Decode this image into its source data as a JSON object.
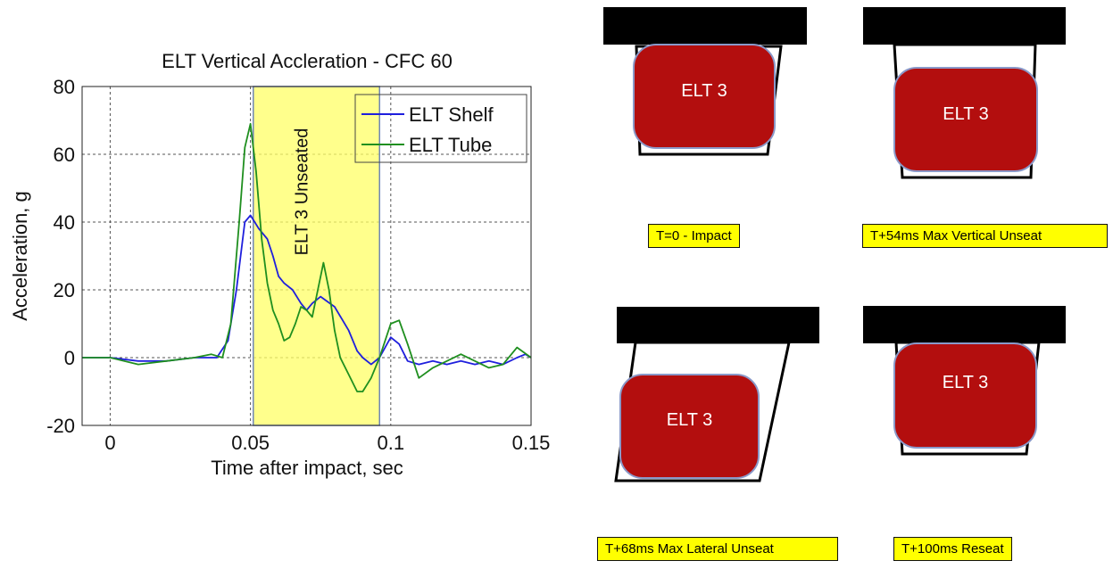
{
  "chart_data": {
    "type": "line",
    "title": "ELT Vertical Accleration - CFC 60",
    "xlabel": "Time after impact, sec",
    "ylabel": "Acceleration, g",
    "xlim": [
      -0.01,
      0.15
    ],
    "ylim": [
      -20,
      80
    ],
    "xticks": [
      0,
      0.05,
      0.1,
      0.15
    ],
    "xtick_labels": [
      "0",
      "0.05",
      "0.1",
      "0.15"
    ],
    "yticks": [
      -20,
      0,
      20,
      40,
      60,
      80
    ],
    "ytick_labels": [
      "-20",
      "0",
      "20",
      "40",
      "60",
      "80"
    ],
    "grid": true,
    "legend_position": "top-right",
    "shaded_region": {
      "x_start": 0.051,
      "x_end": 0.096,
      "label": "ELT 3 Unseated",
      "color": "#ffff66"
    },
    "series": [
      {
        "name": "ELT Shelf",
        "color": "#1f1fdd",
        "x": [
          -0.01,
          0,
          0.01,
          0.02,
          0.03,
          0.038,
          0.042,
          0.045,
          0.048,
          0.05,
          0.053,
          0.056,
          0.058,
          0.06,
          0.062,
          0.065,
          0.068,
          0.07,
          0.072,
          0.075,
          0.08,
          0.085,
          0.088,
          0.09,
          0.093,
          0.096,
          0.1,
          0.103,
          0.106,
          0.11,
          0.115,
          0.12,
          0.125,
          0.13,
          0.135,
          0.14,
          0.145,
          0.148,
          0.15
        ],
        "y": [
          0,
          0,
          -1,
          -1,
          0,
          0,
          5,
          20,
          40,
          42,
          38,
          35,
          30,
          24,
          22,
          20,
          16,
          14,
          16,
          18,
          15,
          8,
          2,
          0,
          -2,
          0,
          6,
          4,
          -1,
          -2,
          -1,
          -2,
          -1,
          -2,
          -1,
          -2,
          0,
          1,
          0
        ]
      },
      {
        "name": "ELT Tube",
        "color": "#1f8f1f",
        "x": [
          -0.01,
          0,
          0.01,
          0.02,
          0.03,
          0.036,
          0.04,
          0.043,
          0.046,
          0.048,
          0.05,
          0.052,
          0.054,
          0.056,
          0.058,
          0.06,
          0.062,
          0.064,
          0.066,
          0.068,
          0.07,
          0.072,
          0.074,
          0.076,
          0.078,
          0.08,
          0.082,
          0.085,
          0.088,
          0.09,
          0.093,
          0.096,
          0.1,
          0.103,
          0.106,
          0.11,
          0.115,
          0.12,
          0.125,
          0.13,
          0.135,
          0.14,
          0.145,
          0.15
        ],
        "y": [
          0,
          0,
          -2,
          -1,
          0,
          1,
          0,
          10,
          40,
          62,
          69,
          55,
          35,
          22,
          14,
          10,
          5,
          6,
          10,
          15,
          14,
          12,
          20,
          28,
          20,
          8,
          0,
          -5,
          -10,
          -10,
          -6,
          0,
          10,
          11,
          4,
          -6,
          -3,
          -1,
          1,
          -1,
          -3,
          -2,
          3,
          0
        ]
      }
    ]
  },
  "panels": [
    {
      "label": "ELT 3",
      "caption": "T=0 - Impact"
    },
    {
      "label": "ELT 3",
      "caption": "T+54ms  Max Vertical Unseat"
    },
    {
      "label": "ELT 3",
      "caption": "T+68ms  Max Lateral Unseat"
    },
    {
      "label": "ELT 3",
      "caption": "T+100ms  Reseat"
    }
  ]
}
